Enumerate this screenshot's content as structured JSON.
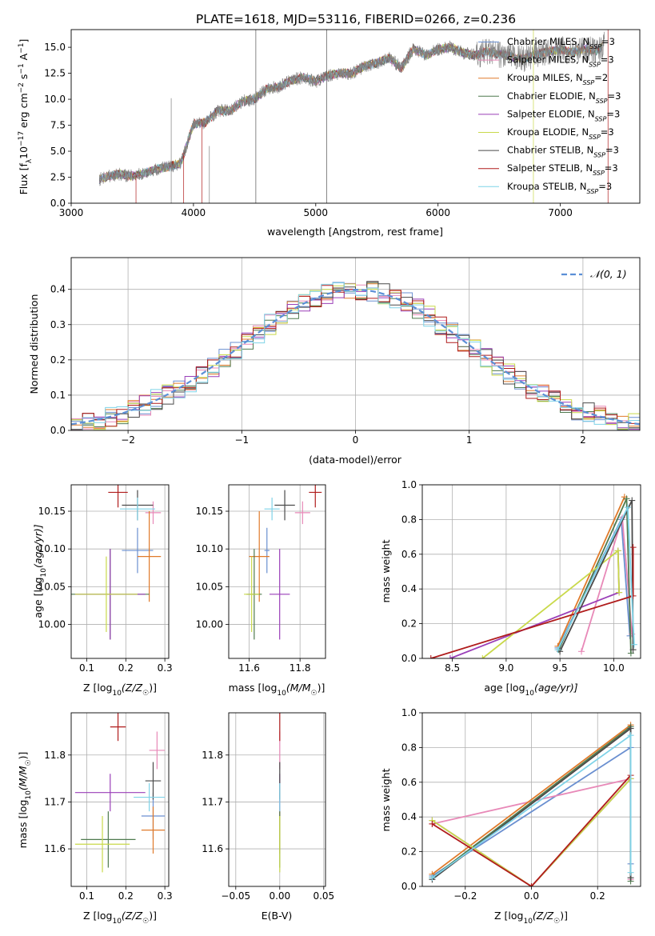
{
  "title": "PLATE=1618, MJD=53116, FIBERID=0266, z=0.236",
  "colors": {
    "chabrier_miles": "#6a8fd0",
    "salpeter_miles": "#e889b8",
    "kroupa_miles": "#e07a2a",
    "chabrier_elodie": "#4f7a4f",
    "salpeter_elodie": "#9a3fb8",
    "kroupa_elodie": "#c9d94a",
    "chabrier_stelib": "#4a4a4a",
    "salpeter_stelib": "#b01c1c",
    "kroupa_stelib": "#7fd3e8",
    "flux": "#808080",
    "grid": "#b0b0b0",
    "gaussian": "#5b8fd6"
  },
  "chart_data": [
    {
      "type": "line",
      "xlabel": "wavelength [Angstrom, rest frame]",
      "ylabel": "Flux [f",
      "ylabel_sub": "λ",
      "ylabel_rest": "10",
      "ylabel_exp1": "−17",
      "ylabel_rest2": " erg cm",
      "ylabel_exp2": "−2",
      "ylabel_rest3": " s",
      "ylabel_exp3": "−1",
      "ylabel_rest4": " A",
      "ylabel_exp4": "−1",
      "ylabel_end": "]",
      "xlim": [
        3000,
        7650
      ],
      "ylim": [
        0,
        16.7
      ],
      "xticks": [
        "3000",
        "4000",
        "5000",
        "6000",
        "7000"
      ],
      "xtick_values": [
        3000,
        4000,
        5000,
        6000,
        7000
      ],
      "yticks": [
        "0.0",
        "2.5",
        "5.0",
        "7.5",
        "10.0",
        "12.5",
        "15.0"
      ],
      "ytick_values": [
        0,
        2.5,
        5,
        7.5,
        10,
        12.5,
        15
      ],
      "grid": false,
      "legend_position": "top-right",
      "legend": [
        {
          "prefix": "Chabrier MILES, N",
          "sub": "SSP",
          "suffix": "=3",
          "color_key": "chabrier_miles"
        },
        {
          "prefix": "Salpeter MILES, N",
          "sub": "SSP",
          "suffix": "=3",
          "color_key": "salpeter_miles"
        },
        {
          "prefix": "Kroupa MILES, N",
          "sub": "SSP",
          "suffix": "=2",
          "color_key": "kroupa_miles"
        },
        {
          "prefix": "Chabrier ELODIE, N",
          "sub": "SSP",
          "suffix": "=3",
          "color_key": "chabrier_elodie"
        },
        {
          "prefix": "Salpeter ELODIE, N",
          "sub": "SSP",
          "suffix": "=3",
          "color_key": "salpeter_elodie"
        },
        {
          "prefix": "Kroupa ELODIE, N",
          "sub": "SSP",
          "suffix": "=3",
          "color_key": "kroupa_elodie"
        },
        {
          "prefix": "Chabrier STELIB, N",
          "sub": "SSP",
          "suffix": "=3",
          "color_key": "chabrier_stelib"
        },
        {
          "prefix": "Salpeter STELIB, N",
          "sub": "SSP",
          "suffix": "=3",
          "color_key": "salpeter_stelib"
        },
        {
          "prefix": "Kroupa STELIB, N",
          "sub": "SSP",
          "suffix": "=3",
          "color_key": "kroupa_stelib"
        }
      ],
      "spectrum": {
        "x": [
          3230,
          3300,
          3400,
          3500,
          3600,
          3700,
          3800,
          3900,
          4000,
          4100,
          4200,
          4300,
          4400,
          4500,
          4600,
          4700,
          4800,
          4900,
          5000,
          5100,
          5200,
          5300,
          5400,
          5500,
          5600,
          5700,
          5800,
          5900,
          6000,
          6100,
          6200,
          6300,
          6400,
          6500,
          6600,
          6700,
          6800,
          6900,
          7000,
          7100,
          7200,
          7300,
          7350
        ],
        "y": [
          2.3,
          2.6,
          2.8,
          2.6,
          2.9,
          3.3,
          3.5,
          3.9,
          7.6,
          7.8,
          8.9,
          8.9,
          9.8,
          10.0,
          11.0,
          11.2,
          11.8,
          12.1,
          11.7,
          12.3,
          12.5,
          12.5,
          13.2,
          13.5,
          14.0,
          13.0,
          14.9,
          14.2,
          14.8,
          15.0,
          14.5,
          14.2,
          14.6,
          14.3,
          14.1,
          13.9,
          14.3,
          14.6,
          14.8,
          14.5,
          14.9,
          14.6,
          15.2
        ]
      }
    },
    {
      "type": "line",
      "xlabel": "(data-model)/error",
      "ylabel": "Normed distribution",
      "xlim": [
        -2.5,
        2.5
      ],
      "ylim": [
        0,
        0.49
      ],
      "xticks": [
        "−2",
        "−1",
        "0",
        "1",
        "2"
      ],
      "xtick_values": [
        -2,
        -1,
        0,
        1,
        2
      ],
      "yticks": [
        "0.0",
        "0.1",
        "0.2",
        "0.3",
        "0.4"
      ],
      "ytick_values": [
        0,
        0.1,
        0.2,
        0.3,
        0.4
      ],
      "grid": true,
      "legend_position": "top-right",
      "legend_label": "𝒩(0, 1)",
      "gaussian": {
        "mean": 0,
        "sigma": 1
      },
      "bin_width": 0.1
    },
    {
      "type": "scatter",
      "xlabel_pre": "Z [log",
      "xlabel_sub": "10",
      "xlabel_post": "(Z/Z",
      "xlabel_sun": "☉",
      "xlabel_end": ")]",
      "ylabel_pre": "age  [log",
      "ylabel_sub": "10",
      "ylabel_post": "(age/yr)]",
      "xlim": [
        0.06,
        0.31
      ],
      "ylim": [
        9.955,
        10.185
      ],
      "xticks": [
        "0.1",
        "0.2",
        "0.3"
      ],
      "xtick_values": [
        0.1,
        0.2,
        0.3
      ],
      "yticks": [
        "10.00",
        "10.05",
        "10.10",
        "10.15"
      ],
      "ytick_values": [
        10.0,
        10.05,
        10.1,
        10.15
      ],
      "grid": true,
      "points": [
        {
          "key": "chabrier_miles",
          "x": 0.23,
          "y": 10.098,
          "xerr": 0.04,
          "yerr": 0.03
        },
        {
          "key": "salpeter_miles",
          "x": 0.27,
          "y": 10.148,
          "xerr": 0.02,
          "yerr": 0.015
        },
        {
          "key": "kroupa_miles",
          "x": 0.26,
          "y": 10.09,
          "xerr": 0.03,
          "yerr": 0.06
        },
        {
          "key": "chabrier_elodie",
          "x": 0.16,
          "y": 10.04,
          "xerr": 0.1,
          "yerr": 0.06
        },
        {
          "key": "salpeter_elodie",
          "x": 0.16,
          "y": 10.04,
          "xerr": 0.09,
          "yerr": 0.06
        },
        {
          "key": "kroupa_elodie",
          "x": 0.15,
          "y": 10.04,
          "xerr": 0.08,
          "yerr": 0.05
        },
        {
          "key": "chabrier_stelib",
          "x": 0.23,
          "y": 10.158,
          "xerr": 0.04,
          "yerr": 0.02
        },
        {
          "key": "salpeter_stelib",
          "x": 0.18,
          "y": 10.175,
          "xerr": 0.025,
          "yerr": 0.02
        },
        {
          "key": "kroupa_stelib",
          "x": 0.23,
          "y": 10.153,
          "xerr": 0.045,
          "yerr": 0.015
        }
      ]
    },
    {
      "type": "scatter",
      "xlabel_pre": "mass [log",
      "xlabel_sub": "10",
      "xlabel_post": "(M/M",
      "xlabel_sun": "☉",
      "xlabel_end": ")]",
      "xlim": [
        11.52,
        11.9
      ],
      "ylim": [
        9.955,
        10.185
      ],
      "xticks": [
        "11.6",
        "11.8"
      ],
      "xtick_values": [
        11.6,
        11.8
      ],
      "yticks": [
        "10.00",
        "10.05",
        "10.10",
        "10.15"
      ],
      "ytick_values": [
        10.0,
        10.05,
        10.1,
        10.15
      ],
      "grid": true,
      "points": [
        {
          "key": "chabrier_miles",
          "x": 11.67,
          "y": 10.098,
          "xerr": 0.01,
          "yerr": 0.03
        },
        {
          "key": "salpeter_miles",
          "x": 11.81,
          "y": 10.148,
          "xerr": 0.03,
          "yerr": 0.015
        },
        {
          "key": "kroupa_miles",
          "x": 11.64,
          "y": 10.09,
          "xerr": 0.04,
          "yerr": 0.06
        },
        {
          "key": "chabrier_elodie",
          "x": 11.62,
          "y": 10.04,
          "xerr": 0.03,
          "yerr": 0.06
        },
        {
          "key": "salpeter_elodie",
          "x": 11.72,
          "y": 10.04,
          "xerr": 0.04,
          "yerr": 0.06
        },
        {
          "key": "kroupa_elodie",
          "x": 11.61,
          "y": 10.04,
          "xerr": 0.03,
          "yerr": 0.05
        },
        {
          "key": "chabrier_stelib",
          "x": 11.74,
          "y": 10.158,
          "xerr": 0.04,
          "yerr": 0.02
        },
        {
          "key": "salpeter_stelib",
          "x": 11.86,
          "y": 10.175,
          "xerr": 0.025,
          "yerr": 0.02
        },
        {
          "key": "kroupa_stelib",
          "x": 11.69,
          "y": 10.153,
          "xerr": 0.03,
          "yerr": 0.015
        }
      ]
    },
    {
      "type": "line",
      "xlabel_pre": "age  [log",
      "xlabel_sub": "10",
      "xlabel_post": "(age/yr)]",
      "ylabel": "mass weight",
      "xlim": [
        8.22,
        10.25
      ],
      "ylim": [
        0,
        1.0
      ],
      "xticks": [
        "8.5",
        "9.0",
        "9.5",
        "10.0"
      ],
      "xtick_values": [
        8.5,
        9.0,
        9.5,
        10.0
      ],
      "yticks": [
        "0.0",
        "0.2",
        "0.4",
        "0.6",
        "0.8",
        "1.0"
      ],
      "ytick_values": [
        0,
        0.2,
        0.4,
        0.6,
        0.8,
        1.0
      ],
      "grid": true,
      "series": [
        {
          "key": "chabrier_miles",
          "x": [
            9.48,
            10.07,
            10.15
          ],
          "y": [
            0.06,
            0.8,
            0.13
          ]
        },
        {
          "key": "salpeter_miles",
          "x": [
            9.7,
            10.08,
            10.17
          ],
          "y": [
            0.04,
            0.81,
            0.14
          ]
        },
        {
          "key": "kroupa_miles",
          "x": [
            9.48,
            10.1
          ],
          "y": [
            0.07,
            0.93
          ]
        },
        {
          "key": "chabrier_elodie",
          "x": [
            9.49,
            10.12,
            10.16
          ],
          "y": [
            0.05,
            0.92,
            0.03
          ]
        },
        {
          "key": "salpeter_elodie",
          "x": [
            8.48,
            10.05,
            10.04
          ],
          "y": [
            0.0,
            0.38,
            0.62
          ]
        },
        {
          "key": "kroupa_elodie",
          "x": [
            8.78,
            10.04,
            10.05
          ],
          "y": [
            0.0,
            0.62,
            0.38
          ]
        },
        {
          "key": "chabrier_stelib",
          "x": [
            9.5,
            10.17,
            10.18
          ],
          "y": [
            0.04,
            0.91,
            0.05
          ]
        },
        {
          "key": "salpeter_stelib",
          "x": [
            8.3,
            10.18,
            10.18
          ],
          "y": [
            0.0,
            0.36,
            0.64
          ]
        },
        {
          "key": "kroupa_stelib",
          "x": [
            9.48,
            10.13,
            10.19
          ],
          "y": [
            0.05,
            0.87,
            0.08
          ]
        }
      ]
    },
    {
      "type": "scatter",
      "xlabel_pre": "Z [log",
      "xlabel_sub": "10",
      "xlabel_post": "(Z/Z",
      "xlabel_sun": "☉",
      "xlabel_end": ")]",
      "ylabel_pre": "mass [log",
      "ylabel_sub": "10",
      "ylabel_post": "(M/M",
      "ylabel_sun": "☉",
      "ylabel_end": ")]",
      "xlim": [
        0.06,
        0.31
      ],
      "ylim": [
        11.52,
        11.89
      ],
      "xticks": [
        "0.1",
        "0.2",
        "0.3"
      ],
      "xtick_values": [
        0.1,
        0.2,
        0.3
      ],
      "yticks": [
        "11.6",
        "11.7",
        "11.8"
      ],
      "ytick_values": [
        11.6,
        11.7,
        11.8
      ],
      "grid": true,
      "points": [
        {
          "key": "chabrier_miles",
          "x": 0.27,
          "y": 11.67,
          "xerr": 0.03,
          "yerr": 0.05
        },
        {
          "key": "salpeter_miles",
          "x": 0.28,
          "y": 11.81,
          "xerr": 0.02,
          "yerr": 0.04
        },
        {
          "key": "kroupa_miles",
          "x": 0.27,
          "y": 11.64,
          "xerr": 0.03,
          "yerr": 0.05
        },
        {
          "key": "chabrier_elodie",
          "x": 0.155,
          "y": 11.62,
          "xerr": 0.07,
          "yerr": 0.06
        },
        {
          "key": "salpeter_elodie",
          "x": 0.16,
          "y": 11.72,
          "xerr": 0.09,
          "yerr": 0.04
        },
        {
          "key": "kroupa_elodie",
          "x": 0.14,
          "y": 11.61,
          "xerr": 0.07,
          "yerr": 0.06
        },
        {
          "key": "chabrier_stelib",
          "x": 0.27,
          "y": 11.745,
          "xerr": 0.02,
          "yerr": 0.04
        },
        {
          "key": "salpeter_stelib",
          "x": 0.18,
          "y": 11.86,
          "xerr": 0.02,
          "yerr": 0.03
        },
        {
          "key": "kroupa_stelib",
          "x": 0.26,
          "y": 11.71,
          "xerr": 0.04,
          "yerr": 0.03
        }
      ]
    },
    {
      "type": "scatter",
      "xlabel": "E(B-V)",
      "xlim": [
        -0.058,
        0.052
      ],
      "ylim": [
        11.52,
        11.89
      ],
      "xticks": [
        "−0.05",
        "0.00",
        "0.05"
      ],
      "xtick_values": [
        -0.05,
        0.0,
        0.05
      ],
      "yticks": [
        "11.6",
        "11.7",
        "11.8"
      ],
      "ytick_values": [
        11.6,
        11.7,
        11.8
      ],
      "grid": true,
      "points": [
        {
          "key": "chabrier_miles",
          "x": 0,
          "y": 11.67,
          "xerr": 0,
          "yerr": 0.05
        },
        {
          "key": "salpeter_miles",
          "x": 0,
          "y": 11.81,
          "xerr": 0,
          "yerr": 0.04
        },
        {
          "key": "kroupa_miles",
          "x": 0,
          "y": 11.64,
          "xerr": 0,
          "yerr": 0.05
        },
        {
          "key": "chabrier_elodie",
          "x": 0,
          "y": 11.62,
          "xerr": 0,
          "yerr": 0.06
        },
        {
          "key": "salpeter_elodie",
          "x": 0,
          "y": 11.72,
          "xerr": 0,
          "yerr": 0.04
        },
        {
          "key": "kroupa_elodie",
          "x": 0,
          "y": 11.61,
          "xerr": 0,
          "yerr": 0.06
        },
        {
          "key": "chabrier_stelib",
          "x": 0,
          "y": 11.745,
          "xerr": 0,
          "yerr": 0.04
        },
        {
          "key": "salpeter_stelib",
          "x": 0,
          "y": 11.86,
          "xerr": 0,
          "yerr": 0.03
        },
        {
          "key": "kroupa_stelib",
          "x": 0,
          "y": 11.71,
          "xerr": 0,
          "yerr": 0.03
        }
      ]
    },
    {
      "type": "line",
      "xlabel_pre": "Z [log",
      "xlabel_sub": "10",
      "xlabel_post": "(Z/Z",
      "xlabel_sun": "☉",
      "xlabel_end": ")]",
      "ylabel": "mass weight",
      "xlim": [
        -0.33,
        0.33
      ],
      "ylim": [
        0,
        1.0
      ],
      "xticks": [
        "−0.2",
        "0.0",
        "0.2"
      ],
      "xtick_values": [
        -0.2,
        0.0,
        0.2
      ],
      "yticks": [
        "0.0",
        "0.2",
        "0.4",
        "0.6",
        "0.8",
        "1.0"
      ],
      "ytick_values": [
        0,
        0.2,
        0.4,
        0.6,
        0.8,
        1.0
      ],
      "grid": true,
      "series": [
        {
          "key": "chabrier_miles",
          "x": [
            -0.3,
            0.3,
            0.3
          ],
          "y": [
            0.06,
            0.8,
            0.13
          ]
        },
        {
          "key": "salpeter_miles",
          "x": [
            -0.3,
            0.3,
            0.3
          ],
          "y": [
            0.36,
            0.62,
            0.04
          ]
        },
        {
          "key": "kroupa_miles",
          "x": [
            -0.3,
            0.3
          ],
          "y": [
            0.07,
            0.93
          ]
        },
        {
          "key": "chabrier_elodie",
          "x": [
            -0.3,
            0.3,
            0.3
          ],
          "y": [
            0.05,
            0.92,
            0.03
          ]
        },
        {
          "key": "salpeter_elodie",
          "x": [
            -0.3,
            0.0,
            0.3
          ],
          "y": [
            0.38,
            0.0,
            0.62
          ]
        },
        {
          "key": "kroupa_elodie",
          "x": [
            -0.3,
            0.0,
            0.3
          ],
          "y": [
            0.38,
            0.0,
            0.62
          ]
        },
        {
          "key": "chabrier_stelib",
          "x": [
            -0.3,
            0.3,
            0.3
          ],
          "y": [
            0.04,
            0.91,
            0.05
          ]
        },
        {
          "key": "salpeter_stelib",
          "x": [
            -0.3,
            0.0,
            0.3
          ],
          "y": [
            0.36,
            0.0,
            0.64
          ]
        },
        {
          "key": "kroupa_stelib",
          "x": [
            -0.3,
            0.3,
            0.3
          ],
          "y": [
            0.05,
            0.87,
            0.08
          ]
        }
      ]
    }
  ]
}
